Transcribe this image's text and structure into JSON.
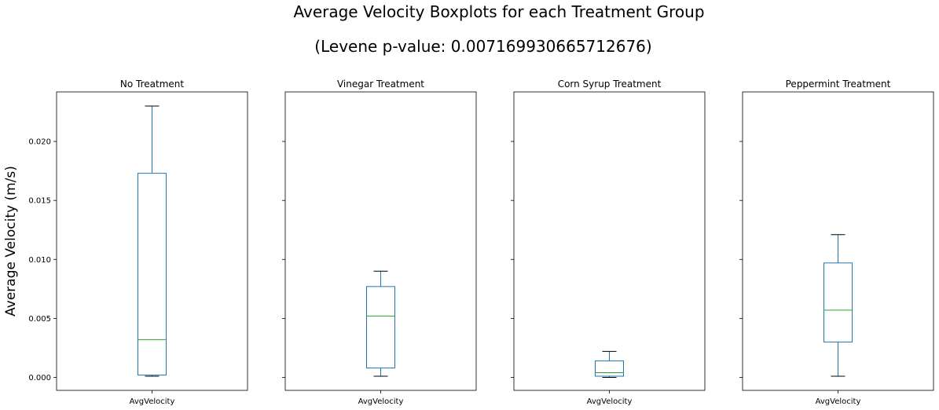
{
  "title_line1": "Average Velocity Boxplots for each Treatment Group",
  "title_line2": "(Levene p-value: 0.007169930665712676)",
  "ylabel": "Average Velocity (m/s)",
  "chart_data": {
    "type": "box",
    "ylim": [
      -0.0011,
      0.0242
    ],
    "yticks": [
      0.0,
      0.005,
      0.01,
      0.015,
      0.02
    ],
    "ytick_labels": [
      "0.000",
      "0.005",
      "0.010",
      "0.015",
      "0.020"
    ],
    "grid": false,
    "sharey": true,
    "box_color": "#1f77b4",
    "median_color": "#2ca02c",
    "whisker_cap_color": "#000000",
    "panels": [
      {
        "title": "No Treatment",
        "xtick_label": "AvgVelocity",
        "whislo": 0.0001,
        "q1": 0.0002,
        "median": 0.0032,
        "q3": 0.0173,
        "whishi": 0.023
      },
      {
        "title": "Vinegar Treatment",
        "xtick_label": "AvgVelocity",
        "whislo": 0.0001,
        "q1": 0.0008,
        "median": 0.0052,
        "q3": 0.0077,
        "whishi": 0.009
      },
      {
        "title": "Corn Syrup Treatment",
        "xtick_label": "AvgVelocity",
        "whislo": 0.0,
        "q1": 0.0001,
        "median": 0.0004,
        "q3": 0.0014,
        "whishi": 0.0022
      },
      {
        "title": "Peppermint Treatment",
        "xtick_label": "AvgVelocity",
        "whislo": 0.0001,
        "q1": 0.003,
        "median": 0.0057,
        "q3": 0.0097,
        "whishi": 0.0121
      }
    ]
  }
}
